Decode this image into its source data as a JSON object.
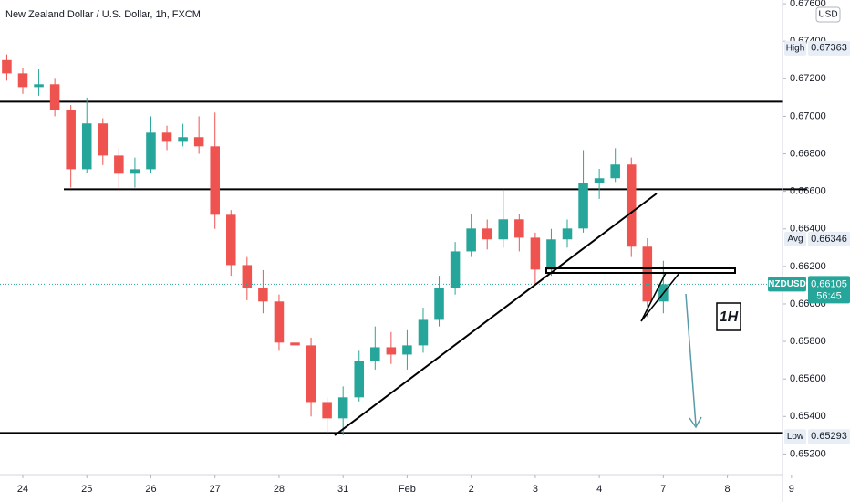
{
  "chart_data": {
    "type": "candlestick",
    "title": "New Zealand Dollar / U.S. Dollar, 1h, FXCM",
    "currency": "USD",
    "symbol": "NZDUSD",
    "countdown": "56:45",
    "annotation": "1H",
    "up_color": "#26a69a",
    "down_color": "#ef5350",
    "grid": false,
    "x": [
      -0.25,
      0,
      0.25,
      0.5,
      0.75,
      1,
      1.25,
      1.5,
      1.75,
      2,
      2.25,
      2.5,
      2.75,
      3,
      3.25,
      3.5,
      3.75,
      4,
      4.25,
      4.5,
      4.75,
      5,
      5.25,
      5.5,
      5.75,
      6,
      6.25,
      6.5,
      6.75,
      7,
      7.25,
      7.5,
      7.75,
      8,
      8.25,
      8.5,
      8.75,
      9,
      9.25,
      9.5,
      9.75,
      10
    ],
    "open": [
      0.673,
      0.67229,
      0.67156,
      0.67171,
      0.67035,
      0.66718,
      0.66962,
      0.66791,
      0.66694,
      0.66718,
      0.66913,
      0.66864,
      0.66889,
      0.6684,
      0.66475,
      0.66207,
      0.66086,
      0.66013,
      0.65794,
      0.65779,
      0.65477,
      0.6539,
      0.65502,
      0.65696,
      0.65769,
      0.6573,
      0.65779,
      0.65915,
      0.66086,
      0.6628,
      0.66402,
      0.66344,
      0.66451,
      0.66353,
      0.66183,
      0.66344,
      0.66402,
      0.66645,
      0.6667,
      0.66743,
      0.66305,
      0.66013
    ],
    "high": [
      0.6733,
      0.6726,
      0.6725,
      0.672,
      0.6706,
      0.671,
      0.6699,
      0.6683,
      0.6678,
      0.67,
      0.6695,
      0.6696,
      0.67,
      0.6702,
      0.665,
      0.6625,
      0.6618,
      0.6605,
      0.6588,
      0.6582,
      0.655,
      0.6556,
      0.6575,
      0.6588,
      0.6585,
      0.6586,
      0.6598,
      0.6615,
      0.6633,
      0.6648,
      0.6645,
      0.6661,
      0.6648,
      0.6638,
      0.664,
      0.6645,
      0.6682,
      0.6672,
      0.6683,
      0.6678,
      0.6635,
      0.6623
    ],
    "low": [
      0.6719,
      0.6712,
      0.6711,
      0.67,
      0.6662,
      0.667,
      0.6674,
      0.6661,
      0.6662,
      0.667,
      0.6682,
      0.6684,
      0.668,
      0.664,
      0.6615,
      0.6602,
      0.6595,
      0.6575,
      0.657,
      0.654,
      0.653,
      0.653,
      0.6548,
      0.6565,
      0.6568,
      0.6565,
      0.6574,
      0.6588,
      0.6605,
      0.6625,
      0.6629,
      0.663,
      0.6628,
      0.661,
      0.6615,
      0.663,
      0.6638,
      0.6656,
      0.6665,
      0.6625,
      0.6593,
      0.6595
    ],
    "close": [
      0.67229,
      0.67156,
      0.67171,
      0.67035,
      0.66718,
      0.66962,
      0.66791,
      0.66694,
      0.66718,
      0.66913,
      0.66864,
      0.66889,
      0.6684,
      0.66475,
      0.66207,
      0.66086,
      0.66013,
      0.65794,
      0.65779,
      0.65477,
      0.6539,
      0.65502,
      0.65696,
      0.65769,
      0.6573,
      0.65779,
      0.65915,
      0.66086,
      0.6628,
      0.66402,
      0.66344,
      0.66451,
      0.66353,
      0.66183,
      0.66344,
      0.66402,
      0.66645,
      0.6667,
      0.66743,
      0.66305,
      0.66013,
      0.66105
    ],
    "levels": [
      0.67078,
      0.66611,
      0.65312
    ],
    "xlim": [
      -0.356,
      11.86
    ],
    "xticks": [
      {
        "value": 0,
        "label": "24"
      },
      {
        "value": 1,
        "label": "25"
      },
      {
        "value": 2,
        "label": "26"
      },
      {
        "value": 3,
        "label": "27"
      },
      {
        "value": 4,
        "label": "28"
      },
      {
        "value": 5,
        "label": "31"
      },
      {
        "value": 6,
        "label": "Feb"
      },
      {
        "value": 7,
        "label": "2"
      },
      {
        "value": 8,
        "label": "3"
      },
      {
        "value": 9,
        "label": "4"
      },
      {
        "value": 10,
        "label": "7"
      },
      {
        "value": 11,
        "label": "8"
      },
      {
        "value": 12,
        "label": "9"
      }
    ],
    "ylim": [
      0.6509,
      0.6762
    ],
    "yticks": [
      {
        "value": 0.652,
        "label": "0.65200"
      },
      {
        "value": 0.654,
        "label": "0.65400"
      },
      {
        "value": 0.656,
        "label": "0.65600"
      },
      {
        "value": 0.658,
        "label": "0.65800"
      },
      {
        "value": 0.66,
        "label": "0.66000"
      },
      {
        "value": 0.662,
        "label": "0.66200"
      },
      {
        "value": 0.664,
        "label": "0.66400"
      },
      {
        "value": 0.666,
        "label": "0.66600"
      },
      {
        "value": 0.668,
        "label": "0.66800"
      },
      {
        "value": 0.67,
        "label": "0.67000"
      },
      {
        "value": 0.672,
        "label": "0.67200"
      },
      {
        "value": 0.674,
        "label": "0.67400"
      },
      {
        "value": 0.676,
        "label": "0.67600"
      }
    ],
    "markers": [
      {
        "label": "High",
        "value": 0.67363
      },
      {
        "label": "Avg",
        "value": 0.66346
      },
      {
        "label": "Low",
        "value": 0.65293
      }
    ]
  }
}
